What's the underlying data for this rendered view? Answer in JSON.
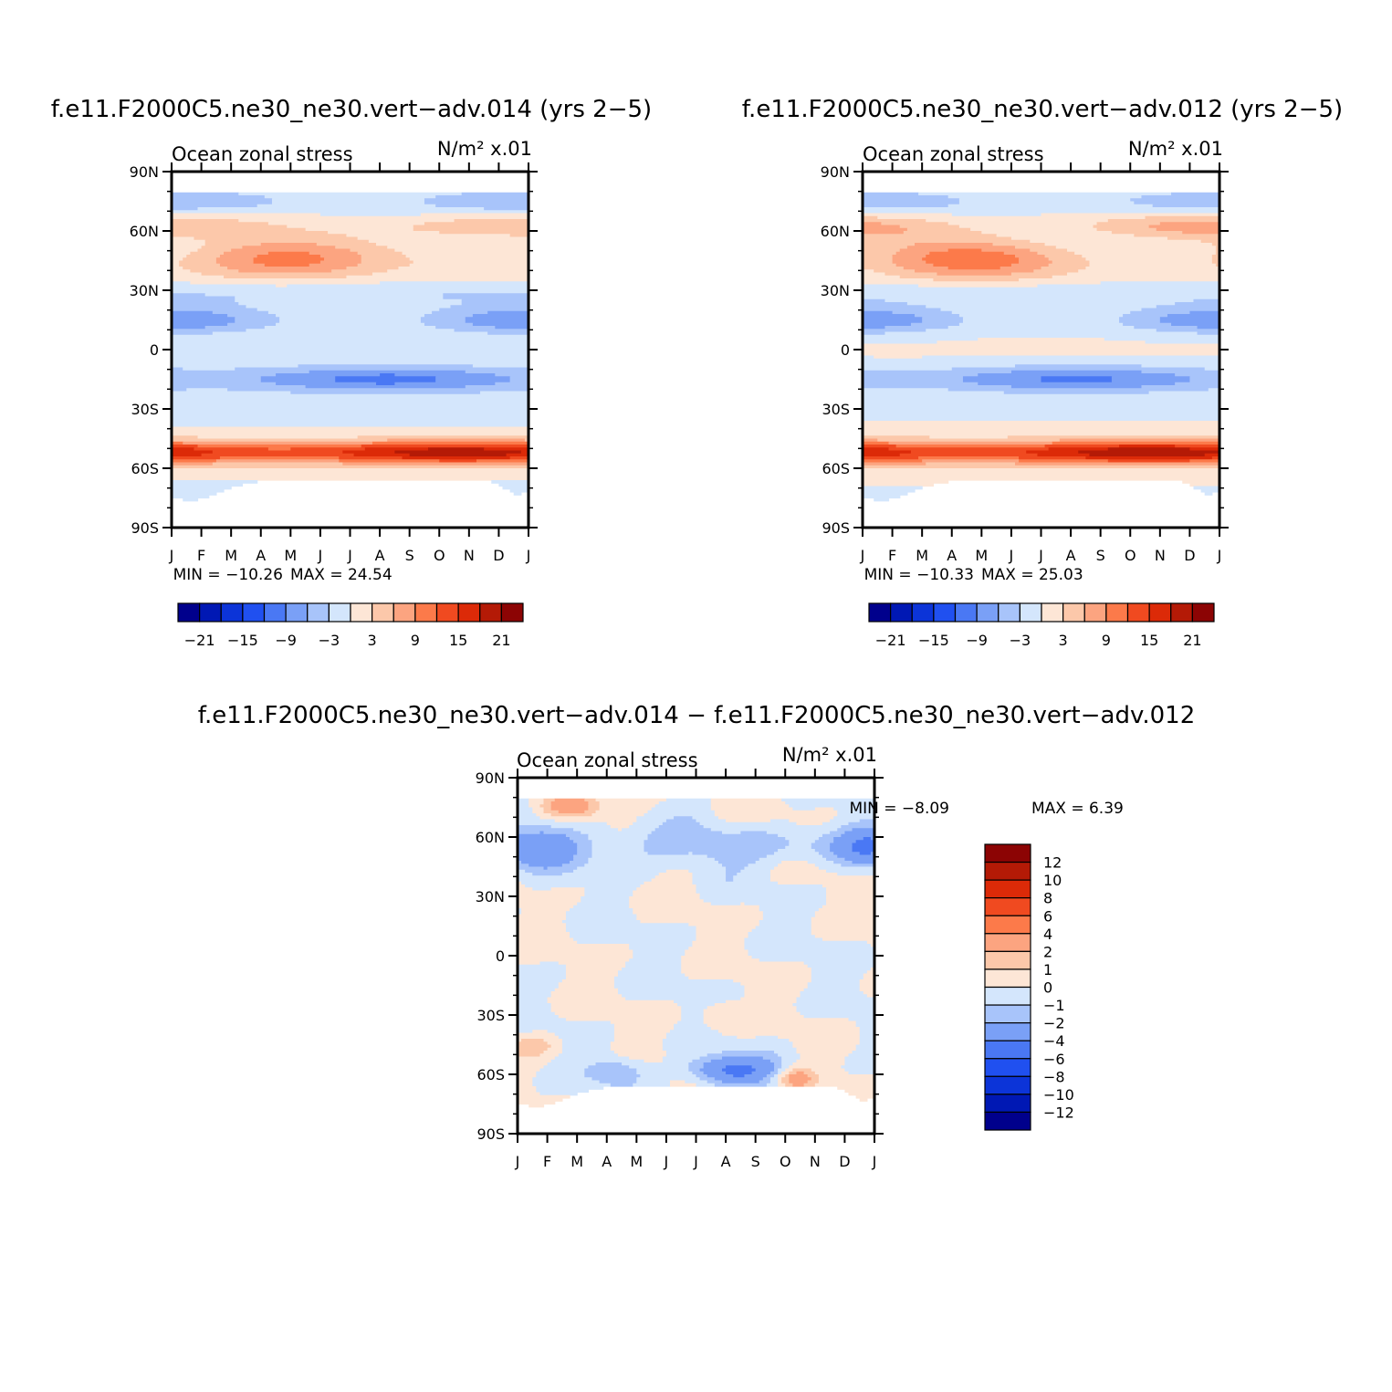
{
  "chart_data": [
    {
      "type": "heatmap",
      "title": "f.e11.F2000C5.ne30_ne30.vert−adv.014 (yrs 2−5)",
      "subtitle_left": "Ocean zonal stress",
      "subtitle_right": "N/m² x.01",
      "x_labels": [
        "J",
        "F",
        "M",
        "A",
        "M",
        "J",
        "J",
        "A",
        "S",
        "O",
        "N",
        "D",
        "J"
      ],
      "y_labels": [
        "90N",
        "60N",
        "30N",
        "0",
        "30S",
        "60S",
        "90S"
      ],
      "ylim": [
        -90,
        90
      ],
      "min_label": "MIN = −10.26",
      "max_label": "MAX = 24.54",
      "colorbar_levels": [
        "−21",
        "−15",
        "−9",
        "−3",
        "3",
        "9",
        "15",
        "21"
      ],
      "zonal_mean_by_latitude": [
        {
          "lat": 75,
          "value": -2
        },
        {
          "lat": 60,
          "value": 4
        },
        {
          "lat": 45,
          "value": 8
        },
        {
          "lat": 30,
          "value": -2
        },
        {
          "lat": 15,
          "value": -7
        },
        {
          "lat": 0,
          "value": -2
        },
        {
          "lat": -15,
          "value": -8
        },
        {
          "lat": -30,
          "value": -3
        },
        {
          "lat": -45,
          "value": 12
        },
        {
          "lat": -55,
          "value": 20
        },
        {
          "lat": -65,
          "value": 6
        },
        {
          "lat": -75,
          "value": -1
        }
      ]
    },
    {
      "type": "heatmap",
      "title": "f.e11.F2000C5.ne30_ne30.vert−adv.012 (yrs 2−5)",
      "subtitle_left": "Ocean zonal stress",
      "subtitle_right": "N/m² x.01",
      "x_labels": [
        "J",
        "F",
        "M",
        "A",
        "M",
        "J",
        "J",
        "A",
        "S",
        "O",
        "N",
        "D",
        "J"
      ],
      "y_labels": [
        "90N",
        "60N",
        "30N",
        "0",
        "30S",
        "60S",
        "90S"
      ],
      "ylim": [
        -90,
        90
      ],
      "min_label": "MIN = −10.33",
      "max_label": "MAX = 25.03",
      "colorbar_levels": [
        "−21",
        "−15",
        "−9",
        "−3",
        "3",
        "9",
        "15",
        "21"
      ],
      "zonal_mean_by_latitude": [
        {
          "lat": 75,
          "value": -2
        },
        {
          "lat": 60,
          "value": 4
        },
        {
          "lat": 45,
          "value": 9
        },
        {
          "lat": 30,
          "value": -2
        },
        {
          "lat": 15,
          "value": -7
        },
        {
          "lat": 0,
          "value": -2
        },
        {
          "lat": -15,
          "value": -8
        },
        {
          "lat": -30,
          "value": -3
        },
        {
          "lat": -45,
          "value": 13
        },
        {
          "lat": -55,
          "value": 21
        },
        {
          "lat": -65,
          "value": 6
        },
        {
          "lat": -75,
          "value": -1
        }
      ]
    },
    {
      "type": "heatmap",
      "title": "f.e11.F2000C5.ne30_ne30.vert−adv.014 − f.e11.F2000C5.ne30_ne30.vert−adv.012",
      "subtitle_left": "Ocean zonal stress",
      "subtitle_right": "N/m² x.01",
      "x_labels": [
        "J",
        "F",
        "M",
        "A",
        "M",
        "J",
        "J",
        "A",
        "S",
        "O",
        "N",
        "D",
        "J"
      ],
      "y_labels": [
        "90N",
        "60N",
        "30N",
        "0",
        "30S",
        "60S",
        "90S"
      ],
      "ylim": [
        -90,
        90
      ],
      "min_label": "MIN = −8.09",
      "max_label": "MAX = 6.39",
      "colorbar_levels": [
        "12",
        "10",
        "8",
        "6",
        "4",
        "2",
        "1",
        "0",
        "−1",
        "−2",
        "−4",
        "−6",
        "−8",
        "−10",
        "−12"
      ]
    }
  ],
  "colors": {
    "blues": [
      "#00008c",
      "#0018b4",
      "#0c34d8",
      "#2050f0",
      "#4a78f4",
      "#7aa0f6",
      "#a8c4fa",
      "#d4e6fc"
    ],
    "reds": [
      "#fde6d6",
      "#fcc8aa",
      "#fca480",
      "#fc7a4a",
      "#f04a20",
      "#dc2a08",
      "#b41a06",
      "#8c0404"
    ]
  }
}
